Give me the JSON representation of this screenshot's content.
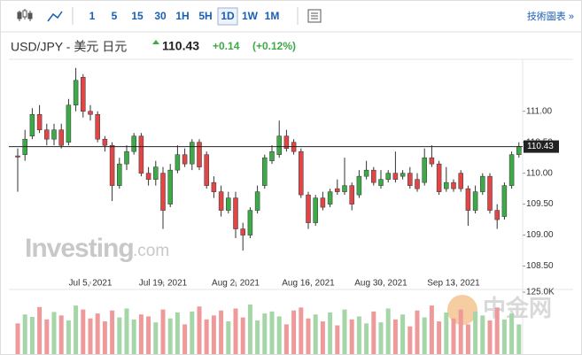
{
  "toolbar": {
    "intervals": [
      "1",
      "5",
      "15",
      "30",
      "1H",
      "5H",
      "1D",
      "1W",
      "1M"
    ],
    "active": "1D",
    "link": "技術圖表 »"
  },
  "header": {
    "symbol": "USD/JPY - 美元 日元",
    "change": "+0.14",
    "change_pct": "(+0.12%)"
  },
  "watermark": {
    "brand": "Investing",
    "suffix": ".com",
    "logo": "中金网"
  },
  "chart_data": {
    "type": "candlestick",
    "last_price": 110.43,
    "categories": [
      null,
      null,
      null,
      null,
      null,
      null,
      null,
      null,
      null,
      null,
      "Jul 5, 2021",
      null,
      null,
      null,
      null,
      null,
      null,
      null,
      null,
      null,
      "Jul 19, 2021",
      null,
      null,
      null,
      null,
      null,
      null,
      null,
      null,
      null,
      "Aug 2, 2021",
      null,
      null,
      null,
      null,
      null,
      null,
      null,
      null,
      null,
      "Aug 16, 2021",
      null,
      null,
      null,
      null,
      null,
      null,
      null,
      null,
      null,
      "Aug 30, 2021",
      null,
      null,
      null,
      null,
      null,
      null,
      null,
      null,
      null,
      "Sep 13, 2021",
      null,
      null,
      null,
      null,
      null,
      null,
      null,
      null,
      null
    ],
    "open": [
      110.28,
      110.3,
      110.6,
      110.95,
      110.7,
      110.55,
      110.7,
      110.5,
      111.1,
      111.55,
      111.0,
      110.95,
      110.55,
      110.45,
      109.8,
      110.15,
      110.35,
      110.6,
      110.0,
      109.9,
      110.0,
      109.5,
      110.05,
      110.3,
      110.15,
      110.5,
      110.3,
      109.85,
      109.7,
      109.4,
      109.6,
      109.1,
      109.0,
      109.4,
      109.8,
      110.2,
      110.3,
      110.6,
      110.5,
      110.35,
      109.65,
      109.2,
      109.6,
      109.5,
      109.75,
      109.7,
      109.8,
      109.65,
      109.95,
      110.05,
      109.8,
      109.9,
      110.0,
      109.95,
      110.0,
      109.9,
      109.85,
      110.25,
      110.15,
      109.75,
      109.85,
      110.0,
      109.75,
      109.4,
      109.7,
      109.95,
      109.4,
      109.3,
      109.8,
      110.3
    ],
    "high": [
      110.4,
      110.7,
      111.05,
      111.1,
      110.8,
      110.8,
      110.8,
      111.2,
      111.7,
      111.6,
      111.1,
      111.0,
      110.6,
      110.5,
      110.25,
      110.45,
      110.65,
      110.65,
      110.1,
      110.2,
      110.1,
      110.15,
      110.45,
      110.4,
      110.55,
      110.55,
      110.35,
      109.95,
      109.8,
      109.7,
      109.7,
      109.2,
      109.45,
      109.8,
      110.3,
      110.45,
      110.85,
      110.7,
      110.55,
      110.4,
      109.7,
      109.65,
      109.7,
      109.75,
      109.9,
      110.25,
      109.85,
      110.05,
      110.2,
      110.1,
      110.05,
      110.05,
      110.35,
      110.05,
      110.1,
      110.0,
      110.4,
      110.45,
      110.2,
      110.1,
      109.9,
      110.05,
      109.8,
      109.8,
      110.0,
      110.0,
      109.5,
      109.85,
      110.35,
      110.5
    ],
    "low": [
      109.7,
      110.2,
      110.55,
      110.65,
      110.45,
      110.45,
      110.4,
      110.45,
      111.0,
      110.9,
      110.85,
      110.5,
      110.35,
      109.55,
      109.75,
      110.05,
      110.3,
      109.95,
      109.8,
      109.8,
      109.1,
      109.45,
      110.0,
      110.1,
      110.05,
      110.05,
      109.75,
      109.6,
      109.3,
      109.35,
      108.95,
      108.75,
      108.95,
      109.35,
      109.75,
      110.15,
      110.25,
      110.35,
      110.3,
      109.6,
      109.1,
      109.15,
      109.4,
      109.45,
      109.65,
      109.65,
      109.4,
      109.6,
      109.9,
      109.8,
      109.75,
      109.85,
      109.85,
      109.9,
      109.75,
      109.7,
      109.8,
      110.1,
      109.65,
      109.7,
      109.7,
      109.7,
      109.15,
      109.35,
      109.65,
      109.35,
      109.1,
      109.25,
      109.75,
      110.25
    ],
    "close": [
      110.26,
      110.55,
      110.95,
      110.7,
      110.55,
      110.7,
      110.45,
      111.1,
      111.5,
      111.0,
      110.95,
      110.55,
      110.45,
      109.8,
      110.15,
      110.35,
      110.6,
      110.0,
      109.9,
      110.1,
      109.4,
      110.05,
      110.3,
      110.15,
      110.5,
      110.1,
      109.8,
      109.7,
      109.4,
      109.6,
      109.1,
      109.0,
      109.4,
      109.7,
      110.25,
      110.35,
      110.6,
      110.4,
      110.35,
      109.65,
      109.2,
      109.6,
      109.45,
      109.7,
      109.7,
      109.8,
      109.5,
      109.95,
      110.05,
      109.85,
      109.9,
      110.0,
      109.9,
      110.0,
      109.8,
      109.75,
      110.25,
      110.15,
      109.7,
      109.85,
      109.75,
      109.75,
      109.4,
      109.7,
      109.95,
      109.4,
      109.25,
      109.8,
      110.3,
      110.43
    ],
    "volume": [
      62000,
      80000,
      75000,
      95000,
      70000,
      85000,
      78000,
      68000,
      98000,
      90000,
      72000,
      82000,
      66000,
      88000,
      74000,
      92000,
      70000,
      80000,
      76000,
      64000,
      90000,
      72000,
      84000,
      60000,
      86000,
      96000,
      70000,
      78000,
      88000,
      66000,
      92000,
      74000,
      100000,
      68000,
      82000,
      86000,
      76000,
      60000,
      88000,
      94000,
      72000,
      80000,
      66000,
      84000,
      58000,
      90000,
      70000,
      76000,
      62000,
      86000,
      64000,
      92000,
      70000,
      80000,
      56000,
      88000,
      74000,
      98000,
      66000,
      84000,
      72000,
      90000,
      60000,
      86000,
      78000,
      68000,
      94000,
      70000,
      82000,
      60000
    ],
    "up_color": "#3daa47",
    "down_color": "#e04646",
    "up_volume_color": "#a5d6a7",
    "down_volume_color": "#ef9a9a",
    "ylim": [
      108.25,
      111.84
    ],
    "yticks": [
      {
        "value": 108.5,
        "label": "108.50"
      },
      {
        "value": 109,
        "label": "109.00"
      },
      {
        "value": 109.5,
        "label": "109.50"
      },
      {
        "value": 110,
        "label": "110.00"
      },
      {
        "value": 110.5,
        "label": "110.50"
      },
      {
        "value": 111,
        "label": "111.00"
      }
    ],
    "volume_lim": [
      0,
      125000
    ],
    "volume_ticks": [
      {
        "value": 125000,
        "label": "125.0K"
      }
    ]
  }
}
